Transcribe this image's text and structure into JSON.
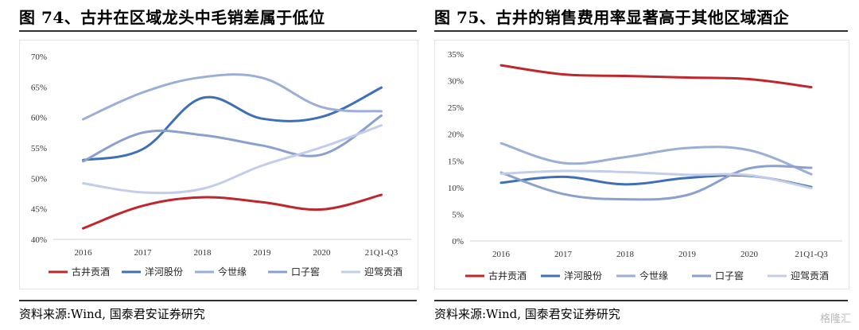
{
  "figures": [
    {
      "title": "图 74、古井在区域龙头中毛销差属于低位",
      "source": "资料来源:Wind, 国泰君安证券研究"
    },
    {
      "title": "图 75、古井的销售费用率显著高于其他区域酒企",
      "source": "资料来源:Wind, 国泰君安证券研究"
    }
  ],
  "watermark": "格隆汇",
  "chart_data": [
    {
      "type": "line",
      "categories": [
        "2016",
        "2017",
        "2018",
        "2019",
        "2020",
        "21Q1-Q3"
      ],
      "ylim": [
        0.4,
        0.7
      ],
      "yticks": [
        0.4,
        0.45,
        0.5,
        0.55,
        0.6,
        0.65,
        0.7
      ],
      "ytick_labels": [
        "40%",
        "45%",
        "50%",
        "55%",
        "60%",
        "65%",
        "70%"
      ],
      "grid": false,
      "legend_position": "bottom",
      "series": [
        {
          "name": "古井贡酒",
          "color": "#c0272d",
          "values": [
            0.418,
            0.455,
            0.469,
            0.461,
            0.449,
            0.473
          ]
        },
        {
          "name": "洋河股份",
          "color": "#3f6fb5",
          "values": [
            0.53,
            0.548,
            0.632,
            0.598,
            0.601,
            0.649
          ]
        },
        {
          "name": "今世缘",
          "color": "#9aaed6",
          "values": [
            0.597,
            0.641,
            0.666,
            0.665,
            0.617,
            0.61
          ]
        },
        {
          "name": "口子窖",
          "color": "#8aa0cf",
          "values": [
            0.528,
            0.575,
            0.571,
            0.554,
            0.539,
            0.603
          ]
        },
        {
          "name": "迎驾贡酒",
          "color": "#c3cdea",
          "values": [
            0.492,
            0.477,
            0.483,
            0.521,
            0.551,
            0.587
          ]
        }
      ]
    },
    {
      "type": "line",
      "categories": [
        "2016",
        "2017",
        "2018",
        "2019",
        "2020",
        "21Q1-Q3"
      ],
      "ylim": [
        0,
        0.35
      ],
      "yticks": [
        0,
        0.05,
        0.1,
        0.15,
        0.2,
        0.25,
        0.3,
        0.35
      ],
      "ytick_labels": [
        "0%",
        "5%",
        "10%",
        "15%",
        "20%",
        "25%",
        "30%",
        "35%"
      ],
      "grid": false,
      "legend_position": "bottom",
      "series": [
        {
          "name": "古井贡酒",
          "color": "#c0272d",
          "values": [
            0.329,
            0.312,
            0.309,
            0.306,
            0.303,
            0.288
          ]
        },
        {
          "name": "洋河股份",
          "color": "#3f6fb5",
          "values": [
            0.109,
            0.12,
            0.106,
            0.118,
            0.122,
            0.101
          ]
        },
        {
          "name": "今世缘",
          "color": "#9aaed6",
          "values": [
            0.183,
            0.146,
            0.157,
            0.174,
            0.17,
            0.125
          ]
        },
        {
          "name": "口子窖",
          "color": "#8aa0cf",
          "values": [
            0.128,
            0.088,
            0.078,
            0.086,
            0.136,
            0.137
          ]
        },
        {
          "name": "迎驾贡酒",
          "color": "#c3cdea",
          "values": [
            0.126,
            0.131,
            0.129,
            0.124,
            0.123,
            0.099
          ]
        }
      ]
    }
  ]
}
